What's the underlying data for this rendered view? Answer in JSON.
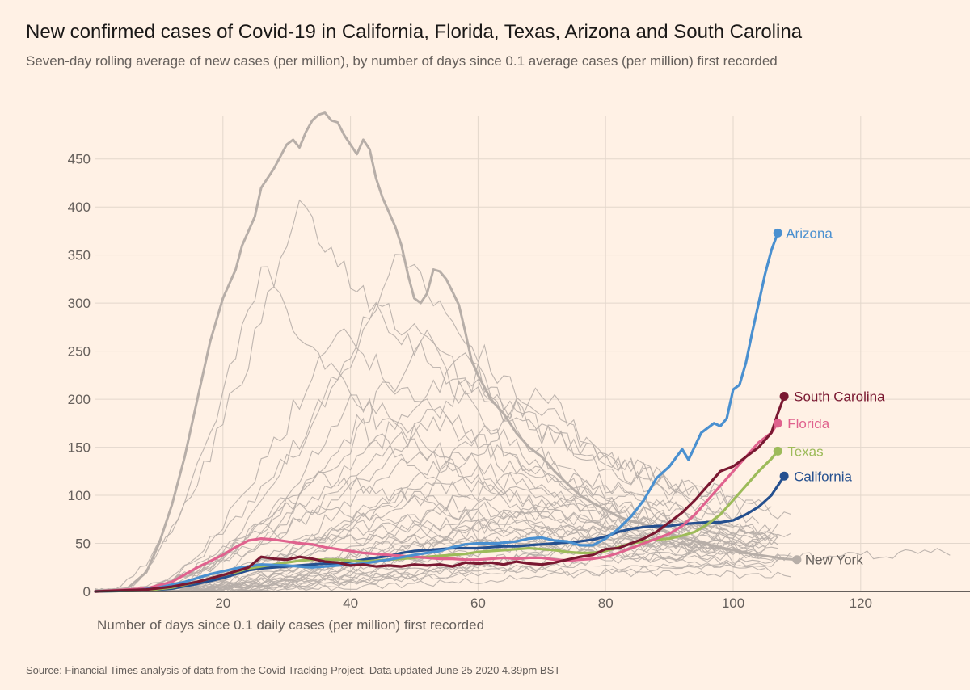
{
  "header": {
    "title": "New confirmed cases of Covid-19 in California, Florida, Texas, Arizona and South Carolina",
    "subtitle": "Seven-day rolling average of new cases (per million), by number of days since 0.1 average cases (per million) first recorded"
  },
  "footer": {
    "source": "Source: Financial Times analysis of data from the Covid Tracking Project. Data updated June 25 2020 4.39pm BST"
  },
  "chart_data": {
    "type": "line",
    "title": "New confirmed cases of Covid-19 in California, Florida, Texas, Arizona and South Carolina",
    "subtitle": "Seven-day rolling average of new cases (per million), by number of days since 0.1 average cases (per million) first recorded",
    "xlabel": "Number of days since 0.1 daily cases (per million) first recorded",
    "ylabel": "",
    "xlim": [
      0,
      136
    ],
    "ylim": [
      0,
      500
    ],
    "x_ticks": [
      20,
      40,
      60,
      80,
      100,
      120
    ],
    "y_ticks": [
      0,
      50,
      100,
      150,
      200,
      250,
      300,
      350,
      400,
      450
    ],
    "grid": true,
    "legend": "direct labels at line ends",
    "colors": {
      "background": "#FFF1E5",
      "grid": "#E3D7CC",
      "other_states": "#B7AEA8",
      "Arizona": "#4A90D0",
      "South Carolina": "#7A1831",
      "Florida": "#E0628E",
      "Texas": "#9DBB5A",
      "California": "#25508F",
      "New York": "#B7AEA8"
    },
    "highlighted_series": [
      {
        "name": "Arizona",
        "end_label": "Arizona",
        "points": [
          [
            0,
            0
          ],
          [
            6,
            1
          ],
          [
            10,
            4
          ],
          [
            14,
            10
          ],
          [
            18,
            18
          ],
          [
            22,
            24
          ],
          [
            26,
            28
          ],
          [
            30,
            27
          ],
          [
            34,
            25
          ],
          [
            38,
            27
          ],
          [
            42,
            29
          ],
          [
            46,
            33
          ],
          [
            50,
            38
          ],
          [
            54,
            42
          ],
          [
            56,
            46
          ],
          [
            58,
            49
          ],
          [
            60,
            50
          ],
          [
            63,
            50
          ],
          [
            66,
            52
          ],
          [
            68,
            55
          ],
          [
            70,
            56
          ],
          [
            72,
            53
          ],
          [
            74,
            52
          ],
          [
            76,
            48
          ],
          [
            78,
            48
          ],
          [
            80,
            55
          ],
          [
            82,
            65
          ],
          [
            84,
            78
          ],
          [
            86,
            95
          ],
          [
            88,
            118
          ],
          [
            90,
            130
          ],
          [
            92,
            148
          ],
          [
            93,
            137
          ],
          [
            95,
            165
          ],
          [
            97,
            175
          ],
          [
            98,
            172
          ],
          [
            99,
            180
          ],
          [
            100,
            210
          ],
          [
            101,
            215
          ],
          [
            102,
            238
          ],
          [
            103,
            270
          ],
          [
            104,
            300
          ],
          [
            105,
            330
          ],
          [
            106,
            355
          ],
          [
            107,
            373
          ]
        ]
      },
      {
        "name": "South Carolina",
        "end_label": "South Carolina",
        "points": [
          [
            0,
            0
          ],
          [
            8,
            2
          ],
          [
            12,
            5
          ],
          [
            16,
            10
          ],
          [
            20,
            17
          ],
          [
            24,
            25
          ],
          [
            26,
            36
          ],
          [
            28,
            34
          ],
          [
            30,
            33
          ],
          [
            32,
            36
          ],
          [
            34,
            34
          ],
          [
            36,
            31
          ],
          [
            38,
            30
          ],
          [
            40,
            27
          ],
          [
            42,
            28
          ],
          [
            44,
            26
          ],
          [
            46,
            27
          ],
          [
            48,
            26
          ],
          [
            50,
            28
          ],
          [
            52,
            27
          ],
          [
            54,
            28
          ],
          [
            56,
            26
          ],
          [
            58,
            30
          ],
          [
            60,
            29
          ],
          [
            62,
            30
          ],
          [
            64,
            28
          ],
          [
            66,
            31
          ],
          [
            68,
            29
          ],
          [
            70,
            28
          ],
          [
            72,
            30
          ],
          [
            74,
            33
          ],
          [
            76,
            36
          ],
          [
            78,
            38
          ],
          [
            80,
            44
          ],
          [
            82,
            45
          ],
          [
            84,
            50
          ],
          [
            86,
            55
          ],
          [
            88,
            62
          ],
          [
            90,
            72
          ],
          [
            92,
            82
          ],
          [
            94,
            95
          ],
          [
            96,
            110
          ],
          [
            98,
            125
          ],
          [
            100,
            130
          ],
          [
            102,
            140
          ],
          [
            104,
            150
          ],
          [
            106,
            165
          ],
          [
            107,
            185
          ],
          [
            108,
            203
          ]
        ]
      },
      {
        "name": "Florida",
        "end_label": "Florida",
        "points": [
          [
            0,
            0
          ],
          [
            8,
            3
          ],
          [
            12,
            10
          ],
          [
            16,
            25
          ],
          [
            20,
            38
          ],
          [
            22,
            46
          ],
          [
            24,
            53
          ],
          [
            26,
            55
          ],
          [
            28,
            54
          ],
          [
            30,
            52
          ],
          [
            32,
            50
          ],
          [
            34,
            49
          ],
          [
            36,
            46
          ],
          [
            38,
            44
          ],
          [
            40,
            42
          ],
          [
            42,
            40
          ],
          [
            44,
            39
          ],
          [
            46,
            38
          ],
          [
            48,
            37
          ],
          [
            50,
            36
          ],
          [
            52,
            35
          ],
          [
            54,
            34
          ],
          [
            56,
            34
          ],
          [
            58,
            33
          ],
          [
            60,
            33
          ],
          [
            62,
            34
          ],
          [
            64,
            35
          ],
          [
            66,
            34
          ],
          [
            68,
            35
          ],
          [
            70,
            35
          ],
          [
            72,
            33
          ],
          [
            74,
            32
          ],
          [
            76,
            33
          ],
          [
            78,
            34
          ],
          [
            80,
            36
          ],
          [
            82,
            40
          ],
          [
            84,
            45
          ],
          [
            86,
            50
          ],
          [
            88,
            55
          ],
          [
            90,
            60
          ],
          [
            92,
            68
          ],
          [
            94,
            80
          ],
          [
            96,
            95
          ],
          [
            98,
            110
          ],
          [
            100,
            125
          ],
          [
            102,
            140
          ],
          [
            104,
            155
          ],
          [
            106,
            165
          ],
          [
            107,
            175
          ]
        ]
      },
      {
        "name": "Texas",
        "end_label": "Texas",
        "points": [
          [
            0,
            0
          ],
          [
            8,
            1
          ],
          [
            12,
            4
          ],
          [
            16,
            10
          ],
          [
            20,
            17
          ],
          [
            22,
            20
          ],
          [
            24,
            24
          ],
          [
            26,
            26
          ],
          [
            28,
            28
          ],
          [
            30,
            30
          ],
          [
            32,
            32
          ],
          [
            34,
            33
          ],
          [
            36,
            33
          ],
          [
            38,
            33
          ],
          [
            40,
            32
          ],
          [
            42,
            31
          ],
          [
            44,
            32
          ],
          [
            46,
            33
          ],
          [
            48,
            34
          ],
          [
            50,
            35
          ],
          [
            52,
            36
          ],
          [
            54,
            37
          ],
          [
            56,
            38
          ],
          [
            58,
            39
          ],
          [
            60,
            41
          ],
          [
            62,
            42
          ],
          [
            64,
            43
          ],
          [
            66,
            44
          ],
          [
            68,
            45
          ],
          [
            70,
            44
          ],
          [
            72,
            43
          ],
          [
            74,
            41
          ],
          [
            76,
            40
          ],
          [
            78,
            40
          ],
          [
            80,
            42
          ],
          [
            82,
            46
          ],
          [
            84,
            50
          ],
          [
            86,
            52
          ],
          [
            88,
            54
          ],
          [
            90,
            55
          ],
          [
            92,
            58
          ],
          [
            94,
            62
          ],
          [
            96,
            70
          ],
          [
            98,
            80
          ],
          [
            100,
            95
          ],
          [
            102,
            110
          ],
          [
            104,
            125
          ],
          [
            106,
            138
          ],
          [
            107,
            146
          ]
        ]
      },
      {
        "name": "California",
        "end_label": "California",
        "points": [
          [
            0,
            0
          ],
          [
            8,
            1
          ],
          [
            12,
            3
          ],
          [
            16,
            8
          ],
          [
            20,
            14
          ],
          [
            22,
            18
          ],
          [
            24,
            22
          ],
          [
            26,
            24
          ],
          [
            28,
            25
          ],
          [
            30,
            26
          ],
          [
            32,
            27
          ],
          [
            34,
            28
          ],
          [
            36,
            29
          ],
          [
            38,
            29
          ],
          [
            40,
            31
          ],
          [
            42,
            33
          ],
          [
            44,
            35
          ],
          [
            46,
            37
          ],
          [
            48,
            40
          ],
          [
            50,
            42
          ],
          [
            52,
            43
          ],
          [
            54,
            44
          ],
          [
            56,
            45
          ],
          [
            58,
            45
          ],
          [
            60,
            45
          ],
          [
            62,
            46
          ],
          [
            64,
            47
          ],
          [
            66,
            47
          ],
          [
            68,
            48
          ],
          [
            70,
            49
          ],
          [
            72,
            50
          ],
          [
            74,
            51
          ],
          [
            76,
            52
          ],
          [
            78,
            54
          ],
          [
            80,
            57
          ],
          [
            82,
            62
          ],
          [
            84,
            65
          ],
          [
            86,
            67
          ],
          [
            88,
            68
          ],
          [
            90,
            68
          ],
          [
            92,
            70
          ],
          [
            94,
            71
          ],
          [
            96,
            72
          ],
          [
            98,
            72
          ],
          [
            100,
            74
          ],
          [
            102,
            80
          ],
          [
            104,
            88
          ],
          [
            106,
            100
          ],
          [
            108,
            120
          ]
        ]
      },
      {
        "name": "New York",
        "end_label": "New York",
        "points": [
          [
            0,
            0
          ],
          [
            5,
            3
          ],
          [
            8,
            20
          ],
          [
            10,
            50
          ],
          [
            12,
            90
          ],
          [
            14,
            140
          ],
          [
            16,
            200
          ],
          [
            18,
            260
          ],
          [
            20,
            305
          ],
          [
            22,
            335
          ],
          [
            23,
            360
          ],
          [
            25,
            390
          ],
          [
            26,
            420
          ],
          [
            28,
            440
          ],
          [
            30,
            465
          ],
          [
            31,
            470
          ],
          [
            32,
            462
          ],
          [
            33,
            478
          ],
          [
            34,
            490
          ],
          [
            35,
            496
          ],
          [
            36,
            498
          ],
          [
            37,
            490
          ],
          [
            38,
            488
          ],
          [
            39,
            475
          ],
          [
            40,
            465
          ],
          [
            41,
            455
          ],
          [
            42,
            470
          ],
          [
            43,
            460
          ],
          [
            44,
            430
          ],
          [
            45,
            410
          ],
          [
            46,
            395
          ],
          [
            47,
            380
          ],
          [
            48,
            360
          ],
          [
            49,
            330
          ],
          [
            50,
            305
          ],
          [
            51,
            300
          ],
          [
            52,
            310
          ],
          [
            53,
            335
          ],
          [
            54,
            333
          ],
          [
            55,
            325
          ],
          [
            56,
            312
          ],
          [
            57,
            298
          ],
          [
            58,
            270
          ],
          [
            59,
            240
          ],
          [
            60,
            225
          ],
          [
            62,
            200
          ],
          [
            64,
            185
          ],
          [
            66,
            165
          ],
          [
            68,
            150
          ],
          [
            70,
            140
          ],
          [
            72,
            125
          ],
          [
            74,
            112
          ],
          [
            76,
            100
          ],
          [
            78,
            92
          ],
          [
            80,
            85
          ],
          [
            82,
            78
          ],
          [
            84,
            73
          ],
          [
            86,
            70
          ],
          [
            88,
            66
          ],
          [
            90,
            60
          ],
          [
            92,
            56
          ],
          [
            94,
            52
          ],
          [
            96,
            49
          ],
          [
            98,
            46
          ],
          [
            100,
            43
          ],
          [
            102,
            40
          ],
          [
            104,
            38
          ],
          [
            106,
            36
          ],
          [
            108,
            34
          ],
          [
            110,
            33
          ]
        ]
      }
    ]
  }
}
